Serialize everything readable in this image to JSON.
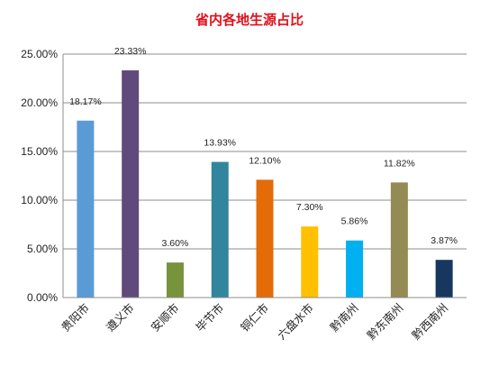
{
  "chart_data": {
    "type": "bar",
    "title": "省内各地生源占比",
    "categories": [
      "贵阳市",
      "遵义市",
      "安顺市",
      "毕节市",
      "铜仁市",
      "六盘水市",
      "黔南州",
      "黔东南州",
      "黔西南州"
    ],
    "values": [
      18.17,
      23.33,
      3.6,
      13.93,
      12.1,
      7.3,
      5.86,
      11.82,
      3.87
    ],
    "value_labels": [
      "18.17%",
      "23.33%",
      "3.60%",
      "13.93%",
      "12.10%",
      "7.30%",
      "5.86%",
      "11.82%",
      "3.87%"
    ],
    "colors": [
      "#5b9bd5",
      "#604a7b",
      "#77933c",
      "#31859c",
      "#e36c09",
      "#ffc000",
      "#00b0f0",
      "#948a54",
      "#17375e"
    ],
    "ylim": [
      0,
      25
    ],
    "yticks": [
      "0.00%",
      "5.00%",
      "10.00%",
      "15.00%",
      "20.00%",
      "25.00%"
    ],
    "xlabel": "",
    "ylabel": "",
    "grid": true,
    "legend": "none"
  }
}
